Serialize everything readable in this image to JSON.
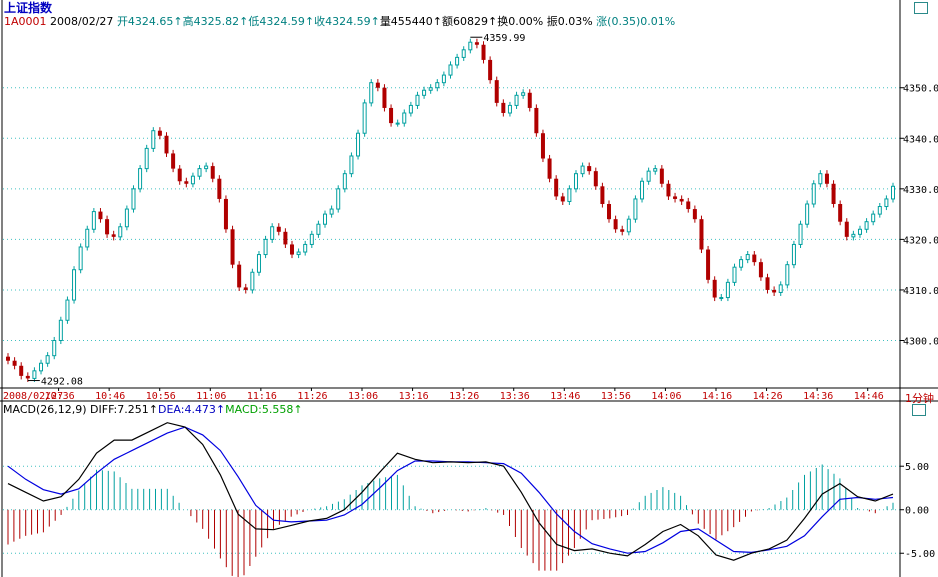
{
  "header": {
    "title": "上证指数",
    "code": "1A0001",
    "date": "2008/02/27",
    "open": "开4324.65↑",
    "high": "高4325.82↑",
    "low": "低4324.59↑",
    "close": "收4324.59↑",
    "volume": "量455440↑",
    "amount": "额60829↑",
    "turnover": "换0.00%",
    "amplitude": "振0.03%",
    "change": "涨(0.35)0.01%"
  },
  "macd_header": {
    "label": "MACD(26,12,9)",
    "diff": "DIFF:7.251↑",
    "dea": "DEA:4.473↑",
    "macd": "MACD:5.558↑"
  },
  "period_label": "1分钟",
  "colors": {
    "up": "#00a0a0",
    "down": "#b00000",
    "diff_line": "#000000",
    "dea_line": "#0000e0",
    "grid": "#40c0c0",
    "axis_label": "#c00000"
  },
  "chart_data": [
    {
      "type": "candlestick",
      "title": "",
      "ylim": [
        4291,
        4363
      ],
      "yticks": [
        4300.0,
        4310.0,
        4320.0,
        4330.0,
        4340.0,
        4350.0
      ],
      "ytick_labels": [
        "4300.0",
        "4310.0",
        "4320.0",
        "4330.0",
        "4340.0",
        "4350.0"
      ],
      "xtick_labels": [
        "2008/02/27",
        "10:36",
        "10:46",
        "10:56",
        "11:06",
        "11:16",
        "11:26",
        "13:06",
        "13:16",
        "13:26",
        "13:36",
        "13:46",
        "13:56",
        "14:06",
        "14:16",
        "14:26",
        "14:36",
        "14:46"
      ],
      "annotations": [
        {
          "label": "4359.99",
          "value": 4359.99
        },
        {
          "label": "4292.08",
          "value": 4292.08
        }
      ],
      "close": [
        4296.0,
        4295.0,
        4293.0,
        4292.5,
        4294.0,
        4295.5,
        4297.0,
        4300.0,
        4304.0,
        4308.0,
        4314.0,
        4318.5,
        4322.0,
        4325.5,
        4324.0,
        4321.0,
        4320.5,
        4322.5,
        4326.0,
        4330.0,
        4334.0,
        4338.0,
        4341.5,
        4340.5,
        4337.0,
        4334.0,
        4331.5,
        4331.0,
        4332.5,
        4334.0,
        4334.5,
        4332.0,
        4328.0,
        4322.0,
        4315.0,
        4310.5,
        4310.0,
        4313.5,
        4317.0,
        4320.0,
        4322.5,
        4321.5,
        4319.0,
        4317.0,
        4317.5,
        4319.0,
        4321.0,
        4323.0,
        4325.0,
        4326.0,
        4330.0,
        4333.0,
        4336.5,
        4341.0,
        4347.0,
        4351.0,
        4350.0,
        4346.0,
        4343.0,
        4343.0,
        4345.0,
        4346.5,
        4348.5,
        4349.5,
        4350.0,
        4351.0,
        4352.5,
        4354.5,
        4356.0,
        4357.5,
        4359.0,
        4358.5,
        4355.5,
        4351.5,
        4347.0,
        4345.0,
        4346.5,
        4348.5,
        4349.0,
        4346.0,
        4341.0,
        4336.0,
        4332.0,
        4328.5,
        4327.5,
        4330.0,
        4333.0,
        4334.5,
        4333.5,
        4330.5,
        4327.0,
        4324.0,
        4322.0,
        4321.5,
        4324.0,
        4328.0,
        4331.5,
        4333.5,
        4334.0,
        4331.0,
        4328.5,
        4328.0,
        4327.5,
        4326.0,
        4324.0,
        4318.0,
        4312.0,
        4308.5,
        4308.5,
        4311.5,
        4314.5,
        4316.0,
        4317.0,
        4315.5,
        4312.5,
        4310.0,
        4309.5,
        4311.0,
        4315.0,
        4319.0,
        4323.0,
        4327.0,
        4331.0,
        4333.0,
        4331.0,
        4327.0,
        4323.5,
        4320.5,
        4321.0,
        4322.0,
        4323.5,
        4325.0,
        4326.5,
        4328.0,
        4330.5
      ]
    },
    {
      "type": "macd",
      "title": "",
      "ylim": [
        -7.5,
        11
      ],
      "yticks": [
        -5.0,
        0.0,
        5.0
      ],
      "ytick_labels": [
        "-5.00",
        "0.00",
        "5.00"
      ],
      "series": [
        {
          "name": "DIFF",
          "values": [
            3.0,
            2.0,
            1.0,
            1.5,
            3.5,
            6.5,
            8.0,
            8.0,
            9.0,
            10.0,
            9.5,
            7.5,
            4.0,
            -0.5,
            -2.2,
            -2.3,
            -1.8,
            -1.3,
            -1.0,
            0.0,
            2.0,
            4.3,
            6.5,
            5.8,
            5.4,
            5.5,
            5.4,
            5.5,
            5.0,
            2.0,
            -1.5,
            -4.0,
            -4.7,
            -4.5,
            -5.0,
            -5.3,
            -4.0,
            -2.5,
            -1.7,
            -3.0,
            -5.2,
            -5.8,
            -5.0,
            -4.5,
            -3.5,
            -1.0,
            1.8,
            3.0,
            1.5,
            1.0,
            1.8
          ]
        },
        {
          "name": "DEA",
          "values": [
            5.0,
            3.5,
            2.3,
            1.8,
            2.4,
            4.2,
            5.8,
            6.8,
            7.8,
            8.8,
            9.5,
            8.6,
            6.8,
            3.8,
            0.5,
            -1.2,
            -1.4,
            -1.3,
            -1.2,
            -0.6,
            0.6,
            2.5,
            4.5,
            5.6,
            5.6,
            5.5,
            5.5,
            5.4,
            5.3,
            4.2,
            2.0,
            -0.5,
            -2.5,
            -3.9,
            -4.5,
            -5.0,
            -4.8,
            -3.8,
            -2.5,
            -2.2,
            -3.5,
            -4.8,
            -4.9,
            -4.6,
            -4.2,
            -3.0,
            -0.8,
            1.2,
            1.4,
            1.2,
            1.4
          ]
        },
        {
          "name": "MACD",
          "values": [
            -4.0,
            -3.0,
            -2.6,
            -0.6,
            2.2,
            4.6,
            4.4,
            2.4,
            2.4,
            2.4,
            0.0,
            -2.2,
            -5.6,
            -8.6,
            -5.4,
            -2.2,
            -0.8,
            0.0,
            0.4,
            1.2,
            2.8,
            3.6,
            4.0,
            0.4,
            -0.4,
            0.0,
            -0.2,
            0.2,
            -0.6,
            -4.4,
            -7.0,
            -7.0,
            -4.4,
            -1.2,
            -1.0,
            -0.6,
            1.6,
            2.6,
            1.6,
            -1.6,
            -3.4,
            -2.0,
            -0.2,
            0.2,
            1.4,
            4.0,
            5.2,
            3.6,
            0.2,
            -0.4,
            0.8
          ]
        }
      ]
    }
  ]
}
